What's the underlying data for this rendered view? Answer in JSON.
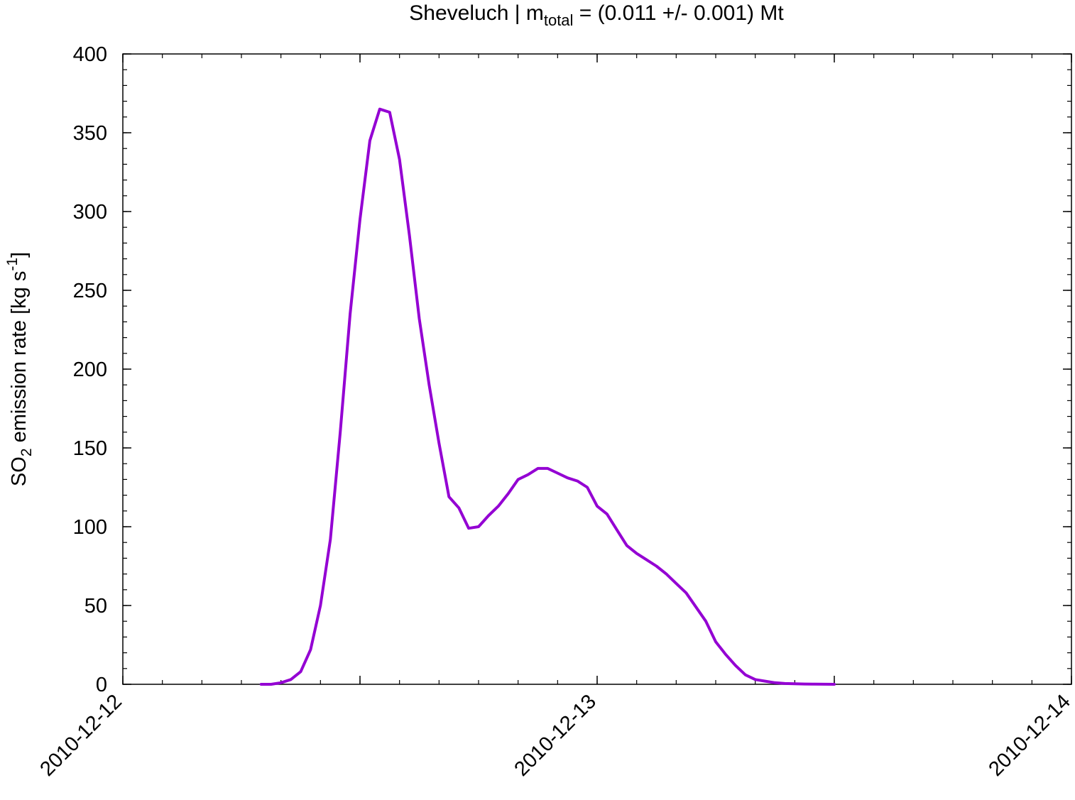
{
  "chart_data": {
    "type": "line",
    "title": {
      "prefix": "Sheveluch | m",
      "subscript": "total",
      "suffix": " = (0.011 +/- 0.001) Mt"
    },
    "ylabel": {
      "prefix": "SO",
      "subscript": "2",
      "middle": " emission rate [kg s",
      "superscript": "-1",
      "suffix": "]"
    },
    "xlabel": "",
    "xlim": [
      "2010-12-12",
      "2010-12-14"
    ],
    "ylim": [
      0,
      400
    ],
    "x_ticks": [
      "2010-12-12",
      "2010-12-13",
      "2010-12-14"
    ],
    "y_ticks": [
      "0",
      "50",
      "100",
      "150",
      "200",
      "250",
      "300",
      "350",
      "400"
    ],
    "grid": false,
    "legend": "none",
    "series": [
      {
        "color": "#9400d3",
        "x": [
          "2010-12-12 07:00",
          "2010-12-12 07:30",
          "2010-12-12 08:00",
          "2010-12-12 08:30",
          "2010-12-12 09:00",
          "2010-12-12 09:30",
          "2010-12-12 10:00",
          "2010-12-12 10:30",
          "2010-12-12 11:00",
          "2010-12-12 11:30",
          "2010-12-12 12:00",
          "2010-12-12 12:30",
          "2010-12-12 13:00",
          "2010-12-12 13:30",
          "2010-12-12 14:00",
          "2010-12-12 14:30",
          "2010-12-12 15:00",
          "2010-12-12 15:30",
          "2010-12-12 16:00",
          "2010-12-12 16:30",
          "2010-12-12 17:00",
          "2010-12-12 17:30",
          "2010-12-12 18:00",
          "2010-12-12 18:30",
          "2010-12-12 19:00",
          "2010-12-12 19:30",
          "2010-12-12 20:00",
          "2010-12-12 20:30",
          "2010-12-12 21:00",
          "2010-12-12 21:30",
          "2010-12-12 22:00",
          "2010-12-12 22:30",
          "2010-12-12 23:00",
          "2010-12-12 23:30",
          "2010-12-13 00:00",
          "2010-12-13 00:30",
          "2010-12-13 01:00",
          "2010-12-13 01:30",
          "2010-12-13 02:00",
          "2010-12-13 02:30",
          "2010-12-13 03:00",
          "2010-12-13 03:30",
          "2010-12-13 04:00",
          "2010-12-13 04:30",
          "2010-12-13 05:00",
          "2010-12-13 05:30",
          "2010-12-13 06:00",
          "2010-12-13 06:30",
          "2010-12-13 07:00",
          "2010-12-13 07:30",
          "2010-12-13 08:00",
          "2010-12-13 08:30",
          "2010-12-13 09:00",
          "2010-12-13 09:30",
          "2010-12-13 10:00",
          "2010-12-13 10:30",
          "2010-12-13 11:00",
          "2010-12-13 11:30",
          "2010-12-13 12:00"
        ],
        "values": [
          0,
          0,
          1,
          3,
          8,
          22,
          50,
          92,
          160,
          235,
          295,
          345,
          365,
          363,
          333,
          285,
          232,
          190,
          153,
          119,
          112,
          99,
          100,
          107,
          113,
          121,
          130,
          133,
          137,
          137,
          134,
          131,
          129,
          125,
          113,
          108,
          98,
          88,
          83,
          79,
          75,
          70,
          64,
          58,
          49,
          40,
          27,
          19,
          12,
          6,
          3,
          2,
          1,
          0.5,
          0.3,
          0.2,
          0.1,
          0.05,
          0
        ]
      }
    ]
  }
}
